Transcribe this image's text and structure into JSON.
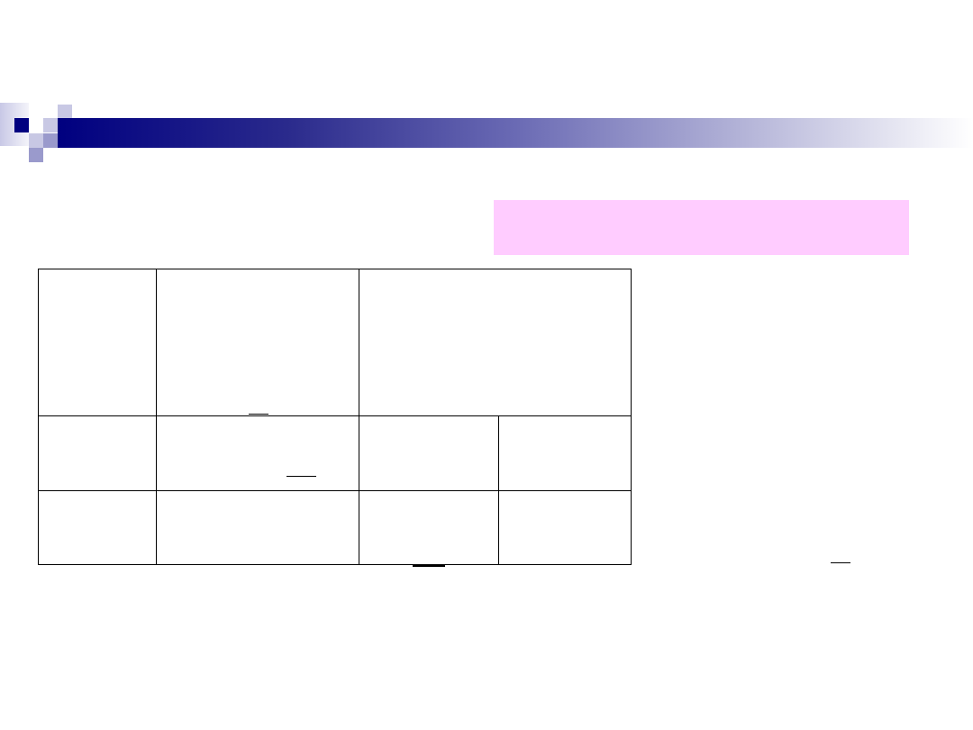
{
  "slide": {
    "header_bar_color": "#000080",
    "highlight_box_color": "#ffccff",
    "table": {
      "rows": 3,
      "columns": 4
    }
  }
}
